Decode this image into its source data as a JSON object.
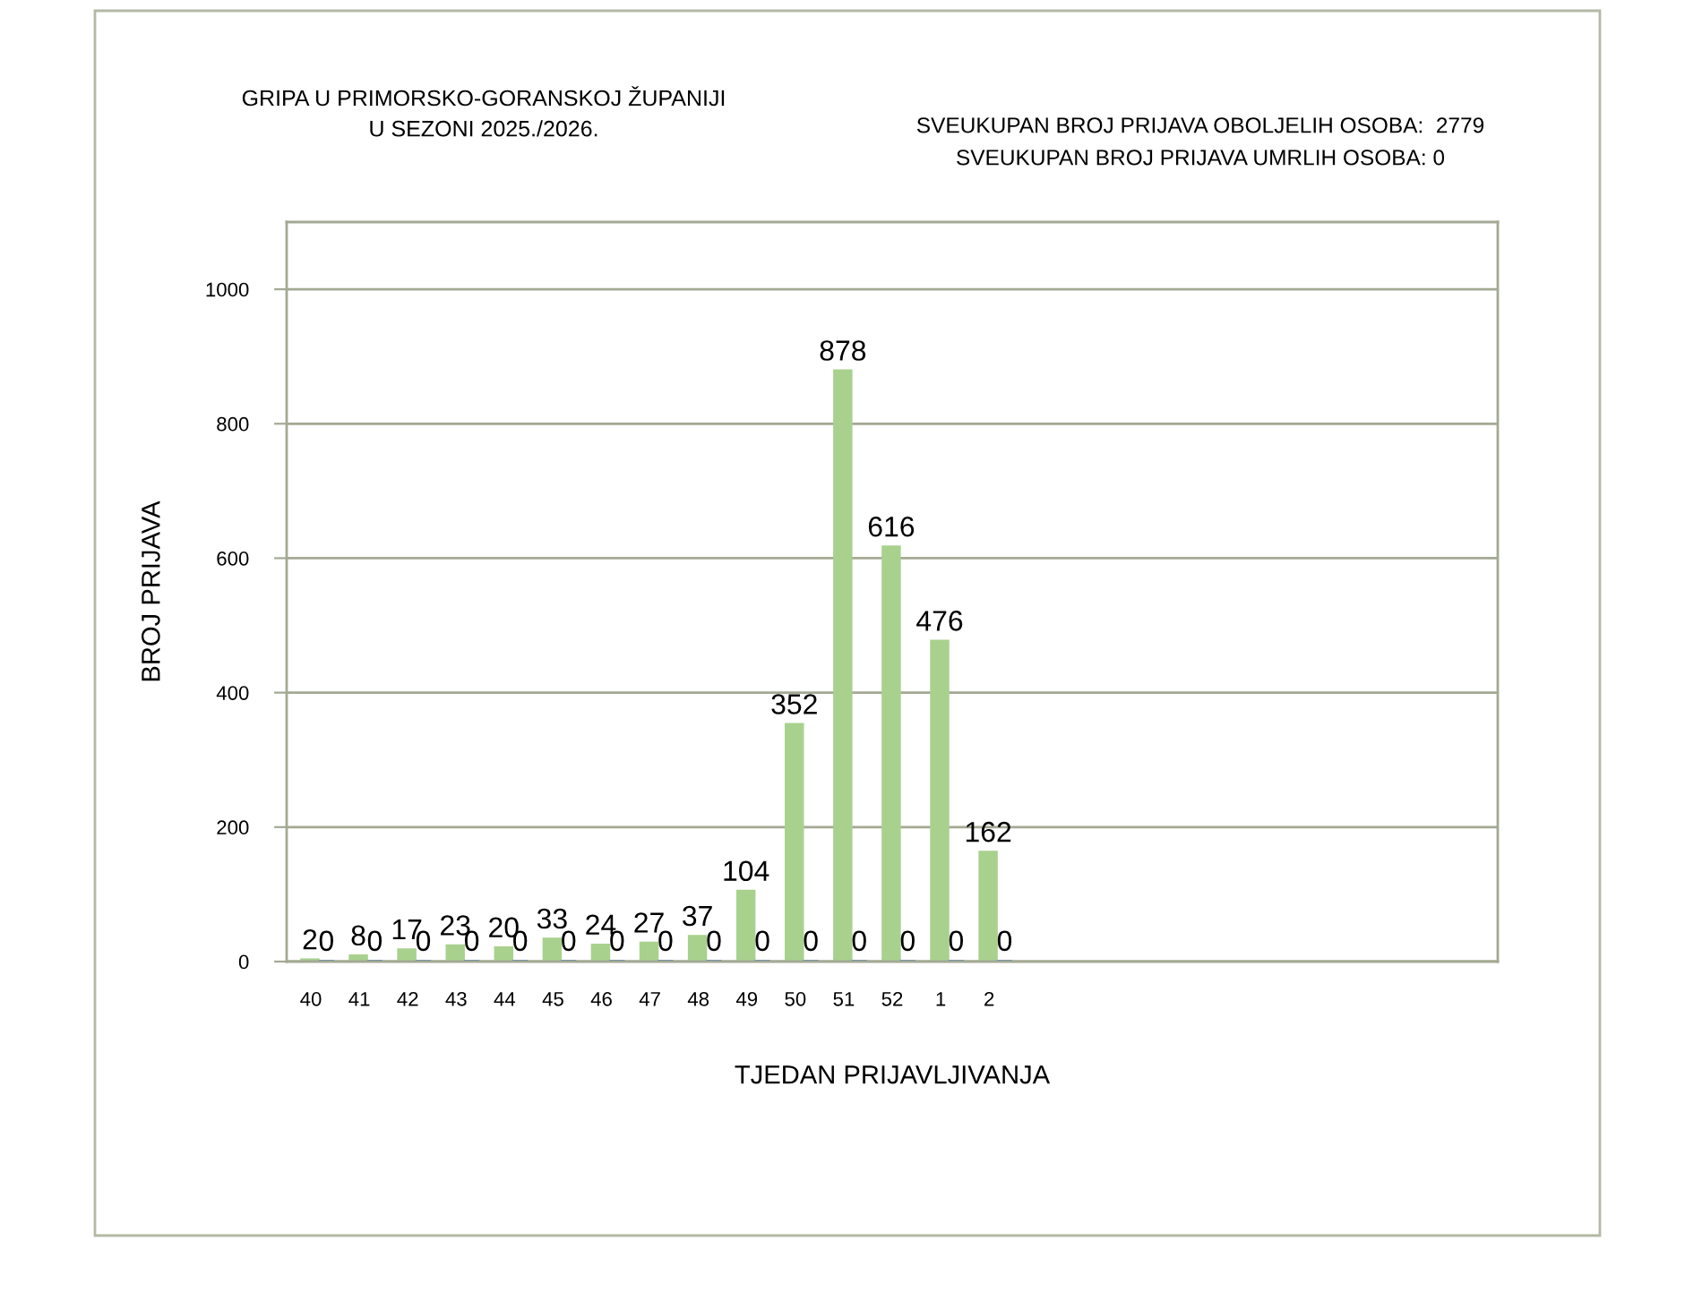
{
  "chart_data": {
    "type": "bar",
    "title": "GRIPA U PRIMORSKO-GORANSKOJ ŽUPANIJI\nU SEZONI 2025./2026.",
    "annotations": [
      "SVEUKUPAN BROJ PRIJAVA OBOLJELIH OSOBA:  2779",
      "SVEUKUPAN BROJ PRIJAVA UMRLIH OSOBA: 0"
    ],
    "xlabel": "TJEDAN PRIJAVLJIVANJA",
    "ylabel": "BROJ PRIJAVA",
    "categories": [
      "40",
      "41",
      "42",
      "43",
      "44",
      "45",
      "46",
      "47",
      "48",
      "49",
      "50",
      "51",
      "52",
      "1",
      "2",
      null,
      null,
      null,
      null,
      null,
      null,
      null,
      null,
      null,
      null
    ],
    "series": [
      {
        "color": "#a9d18e",
        "values": [
          2,
          8,
          17,
          23,
          20,
          33,
          24,
          27,
          37,
          104,
          352,
          878,
          616,
          476,
          162,
          null,
          null,
          null,
          null,
          null,
          null,
          null,
          null,
          null,
          null
        ]
      },
      {
        "color": "#4f81bd",
        "values": [
          0,
          0,
          0,
          0,
          0,
          0,
          0,
          0,
          0,
          0,
          0,
          0,
          0,
          0,
          0,
          null,
          null,
          null,
          null,
          null,
          null,
          null,
          null,
          null,
          null
        ]
      }
    ],
    "ylim": [
      0,
      1100
    ],
    "yticks": [
      0,
      200,
      400,
      600,
      800,
      1000
    ],
    "grid": "y",
    "data_labels": true
  }
}
